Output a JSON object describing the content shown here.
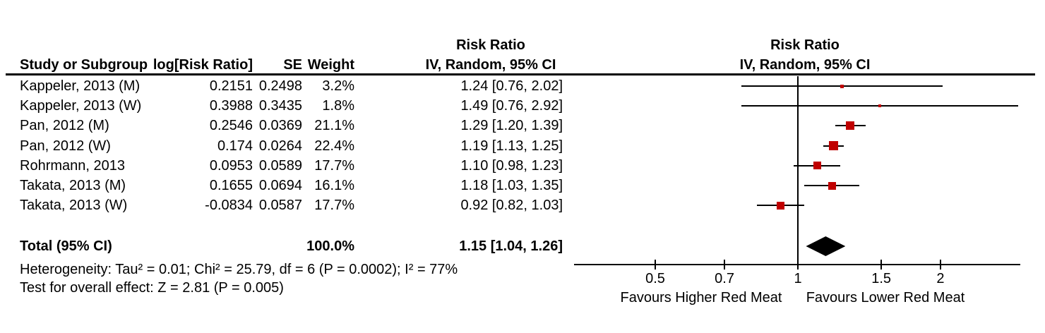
{
  "table": {
    "risk_ratio_header": "Risk Ratio",
    "col_headers": {
      "study": "Study or Subgroup",
      "log_rr": "log[Risk Ratio]",
      "se": "SE",
      "weight": "Weight",
      "ci": "IV, Random, 95% CI"
    },
    "rows": [
      {
        "study": "Kappeler, 2013 (M)",
        "log_rr": "0.2151",
        "se": "0.2498",
        "weight": "3.2%",
        "ci": "1.24 [0.76, 2.02]"
      },
      {
        "study": "Kappeler, 2013 (W)",
        "log_rr": "0.3988",
        "se": "0.3435",
        "weight": "1.8%",
        "ci": "1.49 [0.76, 2.92]"
      },
      {
        "study": "Pan, 2012 (M)",
        "log_rr": "0.2546",
        "se": "0.0369",
        "weight": "21.1%",
        "ci": "1.29 [1.20, 1.39]"
      },
      {
        "study": "Pan, 2012 (W)",
        "log_rr": "0.174",
        "se": "0.0264",
        "weight": "22.4%",
        "ci": "1.19 [1.13, 1.25]"
      },
      {
        "study": "Rohrmann, 2013",
        "log_rr": "0.0953",
        "se": "0.0589",
        "weight": "17.7%",
        "ci": "1.10 [0.98, 1.23]"
      },
      {
        "study": "Takata, 2013 (M)",
        "log_rr": "0.1655",
        "se": "0.0694",
        "weight": "16.1%",
        "ci": "1.18 [1.03, 1.35]"
      },
      {
        "study": "Takata, 2013 (W)",
        "log_rr": "-0.0834",
        "se": "0.0587",
        "weight": "17.7%",
        "ci": "0.92 [0.82, 1.03]"
      }
    ],
    "total": {
      "label": "Total (95% CI)",
      "weight": "100.0%",
      "ci": "1.15 [1.04, 1.26]"
    }
  },
  "footnotes": {
    "heterogeneity": "Heterogeneity: Tau² = 0.01; Chi² = 25.79, df = 6 (P = 0.0002); I² = 77%",
    "overall_effect": "Test for overall effect: Z = 2.81 (P = 0.005)"
  },
  "chart_data": {
    "type": "forest",
    "x_scale": "log",
    "null_value": 1,
    "axis_range": [
      0.34,
      2.95
    ],
    "ticks": [
      0.5,
      0.7,
      1,
      1.5,
      2
    ],
    "tick_labels": [
      "0.5",
      "0.7",
      "1",
      "1.5",
      "2"
    ],
    "series": [
      {
        "label": "Kappeler, 2013 (M)",
        "rr": 1.24,
        "ci_low": 0.76,
        "ci_high": 2.02,
        "weight_pct": 3.2
      },
      {
        "label": "Kappeler, 2013 (W)",
        "rr": 1.49,
        "ci_low": 0.76,
        "ci_high": 2.92,
        "weight_pct": 1.8
      },
      {
        "label": "Pan, 2012 (M)",
        "rr": 1.29,
        "ci_low": 1.2,
        "ci_high": 1.39,
        "weight_pct": 21.1
      },
      {
        "label": "Pan, 2012 (W)",
        "rr": 1.19,
        "ci_low": 1.13,
        "ci_high": 1.25,
        "weight_pct": 22.4
      },
      {
        "label": "Rohrmann, 2013",
        "rr": 1.1,
        "ci_low": 0.98,
        "ci_high": 1.23,
        "weight_pct": 17.7
      },
      {
        "label": "Takata, 2013 (M)",
        "rr": 1.18,
        "ci_low": 1.03,
        "ci_high": 1.35,
        "weight_pct": 16.1
      },
      {
        "label": "Takata, 2013 (W)",
        "rr": 0.92,
        "ci_low": 0.82,
        "ci_high": 1.03,
        "weight_pct": 17.7
      }
    ],
    "total": {
      "rr": 1.15,
      "ci_low": 1.04,
      "ci_high": 1.26
    },
    "x_axis_labels": {
      "left": "Favours Higher Red Meat",
      "right": "Favours Lower Red Meat"
    },
    "marker_color": "#c00000",
    "diamond_color": "#000000",
    "title": "Risk Ratio",
    "subtitle": "IV, Random, 95% CI"
  }
}
